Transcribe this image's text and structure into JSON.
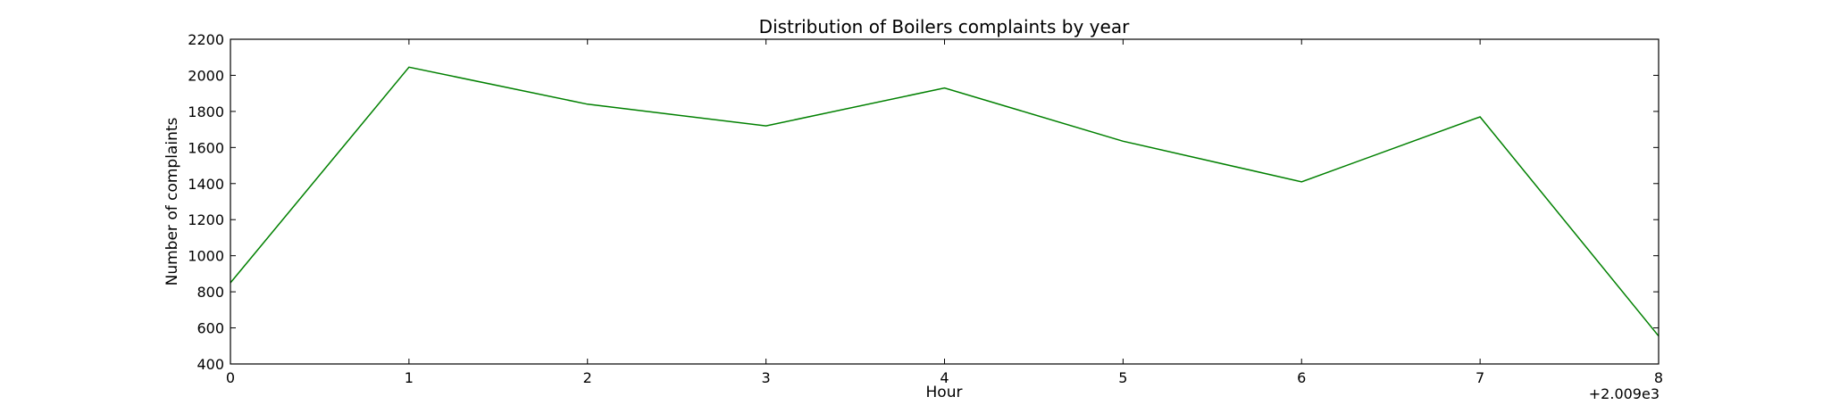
{
  "chart_data": {
    "type": "line",
    "title": "Distribution of  Boilers complaints by year",
    "xlabel": "Hour",
    "ylabel": "Number of complaints",
    "x_offset_label": "+2.009e3",
    "x": [
      0,
      1,
      2,
      3,
      4,
      5,
      6,
      7,
      8
    ],
    "xlim": [
      0,
      8
    ],
    "ylim": [
      400,
      2200
    ],
    "xticks": [
      "0",
      "1",
      "2",
      "3",
      "4",
      "5",
      "6",
      "7",
      "8"
    ],
    "yticks": [
      "400",
      "600",
      "800",
      "1000",
      "1200",
      "1400",
      "1600",
      "1800",
      "2000",
      "2200"
    ],
    "grid": false,
    "legend": "none",
    "series": [
      {
        "color": "#008000",
        "values": [
          850,
          2045,
          1840,
          1720,
          1930,
          1635,
          1410,
          1770,
          555
        ]
      }
    ]
  }
}
